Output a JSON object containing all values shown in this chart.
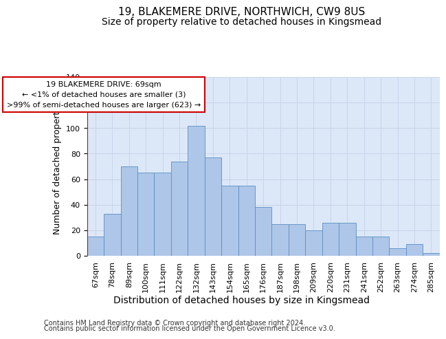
{
  "title": "19, BLAKEMERE DRIVE, NORTHWICH, CW9 8US",
  "subtitle": "Size of property relative to detached houses in Kingsmead",
  "xlabel": "Distribution of detached houses by size in Kingsmead",
  "ylabel": "Number of detached properties",
  "footer1": "Contains HM Land Registry data © Crown copyright and database right 2024.",
  "footer2": "Contains public sector information licensed under the Open Government Licence v3.0.",
  "annotation_line1": "19 BLAKEMERE DRIVE: 69sqm",
  "annotation_line2": "← <1% of detached houses are smaller (3)",
  "annotation_line3": ">99% of semi-detached houses are larger (623) →",
  "categories": [
    "67sqm",
    "78sqm",
    "89sqm",
    "100sqm",
    "111sqm",
    "122sqm",
    "132sqm",
    "143sqm",
    "154sqm",
    "165sqm",
    "176sqm",
    "187sqm",
    "198sqm",
    "209sqm",
    "220sqm",
    "231sqm",
    "241sqm",
    "252sqm",
    "263sqm",
    "274sqm",
    "285sqm"
  ],
  "values": [
    15,
    33,
    70,
    65,
    65,
    74,
    102,
    77,
    55,
    55,
    38,
    25,
    25,
    20,
    26,
    26,
    15,
    15,
    6,
    9,
    2
  ],
  "bar_color": "#aec6e8",
  "bar_edge_color": "#5a8fc2",
  "annotation_box_color": "#cc0000",
  "annotation_fill": "#ffffff",
  "marker_color": "#cc0000",
  "ylim": [
    0,
    140
  ],
  "yticks": [
    0,
    20,
    40,
    60,
    80,
    100,
    120,
    140
  ],
  "grid_color": "#c8d4e8",
  "bg_color": "#dce8f8",
  "title_fontsize": 11,
  "subtitle_fontsize": 10,
  "ylabel_fontsize": 9,
  "xlabel_fontsize": 10,
  "tick_fontsize": 8,
  "annotation_fontsize": 8,
  "footer_fontsize": 7
}
